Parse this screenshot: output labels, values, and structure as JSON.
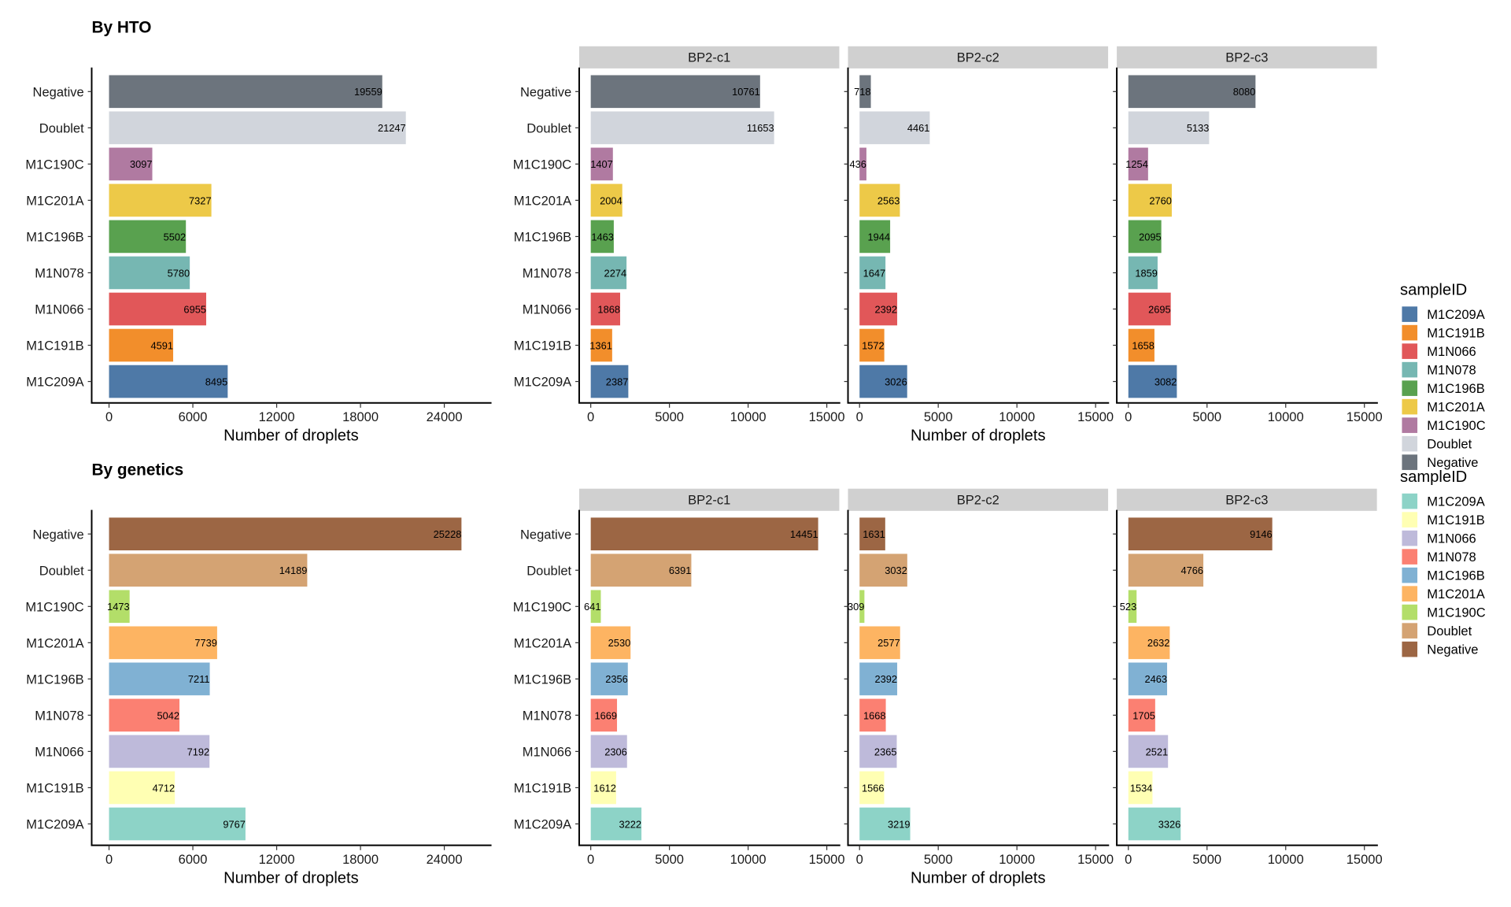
{
  "chart_data": [
    {
      "type": "bar",
      "orientation": "horizontal",
      "title": "By HTO",
      "categories": [
        "Negative",
        "Doublet",
        "M1C190C",
        "M1C201A",
        "M1C196B",
        "M1N078",
        "M1N066",
        "M1C191B",
        "M1C209A"
      ],
      "xlabel": "Number of droplets",
      "legend_title": "sampleID",
      "legend_entries": [
        "M1C209A",
        "M1C191B",
        "M1N066",
        "M1N078",
        "M1C196B",
        "M1C201A",
        "M1C190C",
        "Doublet",
        "Negative"
      ],
      "legend_placement": "right",
      "colors": {
        "M1C209A": "#4E79A7",
        "M1C191B": "#F28E2B",
        "M1N066": "#E15759",
        "M1N078": "#76B7B2",
        "M1C196B": "#59A14F",
        "M1C201A": "#EDC948",
        "M1C190C": "#B07AA1",
        "Doublet": "#D1D5DC",
        "Negative": "#6C747D"
      },
      "overall": {
        "values": [
          19559,
          21247,
          3097,
          7327,
          5502,
          5780,
          6955,
          4591,
          8495
        ],
        "xlim": [
          0,
          27000
        ],
        "ticks": [
          0,
          6000,
          12000,
          18000,
          24000
        ]
      },
      "facets": [
        {
          "name": "BP2-c1",
          "values": [
            10761,
            11653,
            1407,
            2004,
            1463,
            2274,
            1868,
            1361,
            2387
          ]
        },
        {
          "name": "BP2-c2",
          "values": [
            718,
            4461,
            436,
            2563,
            1944,
            1647,
            2392,
            1572,
            3026
          ]
        },
        {
          "name": "BP2-c3",
          "values": [
            8080,
            5133,
            1254,
            2760,
            2095,
            1859,
            2695,
            1658,
            3082
          ]
        }
      ],
      "facet_xlim": [
        0,
        16000
      ],
      "facet_ticks": [
        0,
        5000,
        10000,
        15000
      ]
    },
    {
      "type": "bar",
      "orientation": "horizontal",
      "title": "By genetics",
      "categories": [
        "Negative",
        "Doublet",
        "M1C190C",
        "M1C201A",
        "M1C196B",
        "M1N078",
        "M1N066",
        "M1C191B",
        "M1C209A"
      ],
      "xlabel": "Number of droplets",
      "legend_title": "sampleID",
      "legend_entries": [
        "M1C209A",
        "M1C191B",
        "M1N066",
        "M1N078",
        "M1C196B",
        "M1C201A",
        "M1C190C",
        "Doublet",
        "Negative"
      ],
      "legend_placement": "right",
      "colors": {
        "M1C209A": "#8DD3C7",
        "M1C191B": "#FFFFB3",
        "M1N066": "#BEBADA",
        "M1N078": "#FB8072",
        "M1C196B": "#80B1D3",
        "M1C201A": "#FDB462",
        "M1C190C": "#B3DE69",
        "Doublet": "#D4A373",
        "Negative": "#9C6644"
      },
      "overall": {
        "values": [
          25228,
          14189,
          1473,
          7739,
          7211,
          5042,
          7192,
          4712,
          9767
        ],
        "xlim": [
          0,
          27000
        ],
        "ticks": [
          0,
          6000,
          12000,
          18000,
          24000
        ]
      },
      "facets": [
        {
          "name": "BP2-c1",
          "values": [
            14451,
            6391,
            641,
            2530,
            2356,
            1669,
            2306,
            1612,
            3222
          ]
        },
        {
          "name": "BP2-c2",
          "values": [
            1631,
            3032,
            309,
            2577,
            2392,
            1668,
            2365,
            1566,
            3219
          ]
        },
        {
          "name": "BP2-c3",
          "values": [
            9146,
            4766,
            523,
            2632,
            2463,
            1705,
            2521,
            1534,
            3326
          ]
        }
      ],
      "facet_xlim": [
        0,
        16000
      ],
      "facet_ticks": [
        0,
        5000,
        10000,
        15000
      ]
    }
  ]
}
